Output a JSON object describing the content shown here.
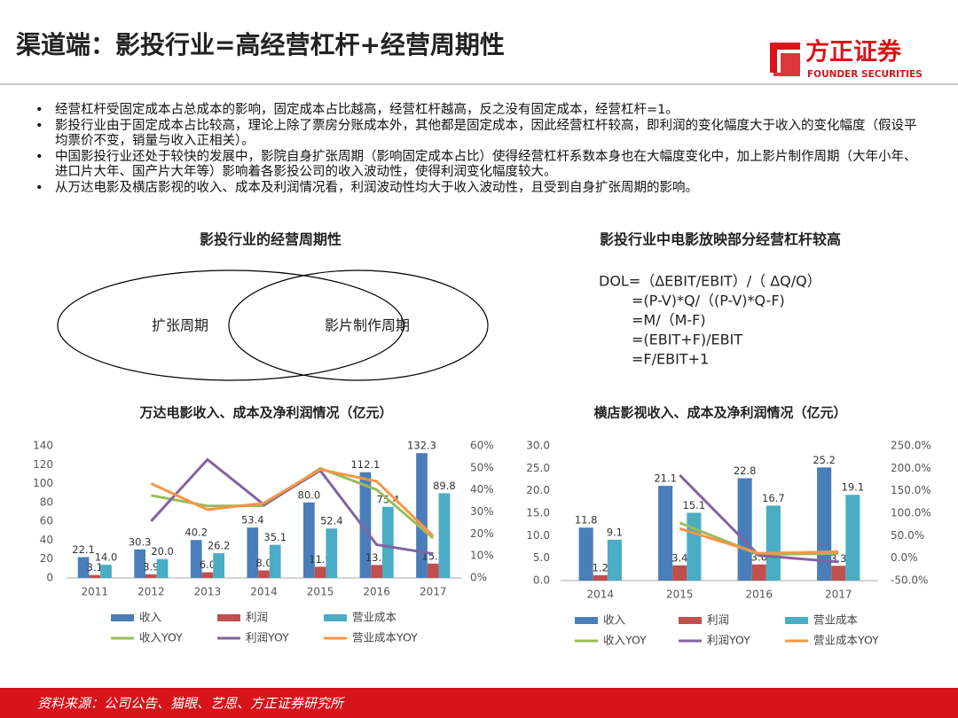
{
  "header": {
    "title": "渠道端：影投行业=高经营杠杆+经营周期性",
    "logo": "方正证券",
    "logo_en": "FOUNDER SECURITIES"
  },
  "bullets": [
    "经营杠杆受固定成本占总成本的影响，固定成本占比越高，经营杠杆越高，反之没有固定成本，经营杠杆=1。",
    "影投行业由于固定成本占比较高，理论上除了票房分账成本外，其他都是固定成本，因此经营杠杆较高，即利润的变化幅度大于收入的变化幅度（假设平均票价不变，销量与收入正相关）。",
    "中国影投行业还处于较快的发展中，影院自身扩张周期（影响固定成本占比）使得经营杠杆系数本身也在大幅度变化中，加上影片制作周期（大年小年、进口片大年、国产片大年等）影响着各影投公司的收入波动性，使得利润变化幅度较大。",
    "从万达电影及横店影视的收入、成本及利润情况看，利润波动性均大于收入波动性，且受到自身扩张周期的影响。"
  ],
  "venn": {
    "title": "影投行业的经营周期性",
    "labels": [
      "扩张周期",
      "影片制作周期"
    ]
  },
  "dol": {
    "title": "影投行业中电影放映部分经营杠杆较高",
    "lines": [
      "DOL=（ΔEBIT/EBIT）/（ ΔQ/Q）",
      "=(P-V)*Q/（(P-V)*Q-F)",
      "=M/（M-F)",
      "=(EBIT+F)/EBIT",
      "=F/EBIT+1"
    ]
  },
  "chart_data": [
    {
      "type": "bar",
      "title": "万达电影收入、成本及净利润情况（亿元）",
      "categories": [
        "2011",
        "2012",
        "2013",
        "2014",
        "2015",
        "2016",
        "2017"
      ],
      "ylim": [
        0,
        140
      ],
      "yticks": [
        0,
        20,
        40,
        60,
        80,
        100,
        120,
        140
      ],
      "y2lim": [
        0,
        60
      ],
      "y2ticks": [
        {
          "value": 0,
          "label": "0%"
        },
        {
          "value": 10,
          "label": "10%"
        },
        {
          "value": 20,
          "label": "20%"
        },
        {
          "value": 30,
          "label": "30%"
        },
        {
          "value": 40,
          "label": "40%"
        },
        {
          "value": 50,
          "label": "50%"
        },
        {
          "value": 60,
          "label": "60%"
        }
      ],
      "series": [
        {
          "name": "收入",
          "color": "#4a7ebb",
          "values": [
            22.1,
            30.3,
            40.2,
            53.4,
            80.0,
            112.1,
            132.3
          ],
          "value_labels": [
            "22.1",
            "30.3",
            "40.2",
            "53.4",
            "80.0",
            "112.1",
            "132.3"
          ]
        },
        {
          "name": "利润",
          "color": "#c0504d",
          "values": [
            3.1,
            3.9,
            6.0,
            8.0,
            11.9,
            13.7,
            15.2
          ],
          "value_labels": [
            "3.1",
            "3.9",
            "6.0",
            "8.0",
            "11.9",
            "13.7",
            "15.2"
          ]
        },
        {
          "name": "营业成本",
          "color": "#4bacc6",
          "values": [
            14.0,
            20.0,
            26.2,
            35.1,
            52.4,
            75.4,
            89.8
          ],
          "value_labels": [
            "14.0",
            "20.0",
            "26.2",
            "35.1",
            "52.4",
            "75.4",
            "89.8"
          ]
        },
        {
          "name": "收入YOY",
          "color": "#9bbb59",
          "axis": "y2",
          "values": [
            null,
            37.5,
            32.7,
            32.8,
            49.8,
            40.1,
            18.0
          ]
        },
        {
          "name": "利润YOY",
          "color": "#8064a2",
          "axis": "y2",
          "values": [
            null,
            25.8,
            53.8,
            33.3,
            48.8,
            15.1,
            11.0
          ]
        },
        {
          "name": "营业成本YOY",
          "color": "#f79646",
          "axis": "y2",
          "values": [
            null,
            42.9,
            31.0,
            34.0,
            49.3,
            43.9,
            19.1
          ]
        }
      ]
    },
    {
      "type": "bar",
      "title": "横店影视收入、成本及净利润情况（亿元）",
      "categories": [
        "2014",
        "2015",
        "2016",
        "2017"
      ],
      "ylim": [
        0,
        30
      ],
      "yticks": [
        {
          "value": 0,
          "label": "0.0"
        },
        {
          "value": 5,
          "label": "5.0"
        },
        {
          "value": 10,
          "label": "10.0"
        },
        {
          "value": 15,
          "label": "15.0"
        },
        {
          "value": 20,
          "label": "20.0"
        },
        {
          "value": 25,
          "label": "25.0"
        },
        {
          "value": 30,
          "label": "30.0"
        }
      ],
      "y2lim": [
        -50,
        250
      ],
      "y2ticks": [
        {
          "value": -50,
          "label": "-50.0%"
        },
        {
          "value": 0,
          "label": "0.0%"
        },
        {
          "value": 50,
          "label": "50.0%"
        },
        {
          "value": 100,
          "label": "100.0%"
        },
        {
          "value": 150,
          "label": "150.0%"
        },
        {
          "value": 200,
          "label": "200.0%"
        },
        {
          "value": 250,
          "label": "250.0%"
        }
      ],
      "series": [
        {
          "name": "收入",
          "color": "#4a7ebb",
          "values": [
            11.8,
            21.1,
            22.8,
            25.2
          ]
        },
        {
          "name": "利润",
          "color": "#c0504d",
          "values": [
            1.2,
            3.4,
            3.6,
            3.3
          ]
        },
        {
          "name": "营业成本",
          "color": "#4bacc6",
          "values": [
            9.1,
            15.1,
            16.7,
            19.1
          ]
        },
        {
          "name": "收入YOY",
          "color": "#9bbb59",
          "axis": "y2",
          "values": [
            null,
            78.8,
            8.1,
            10.5
          ]
        },
        {
          "name": "利润YOY",
          "color": "#8064a2",
          "axis": "y2",
          "values": [
            null,
            185,
            5.9,
            -8.3
          ]
        },
        {
          "name": "营业成本YOY",
          "color": "#f79646",
          "axis": "y2",
          "values": [
            null,
            65.9,
            10.6,
            14.4
          ]
        }
      ]
    }
  ],
  "footer": "资料来源：公司公告、猫眼、艺恩、方正证券研究所"
}
